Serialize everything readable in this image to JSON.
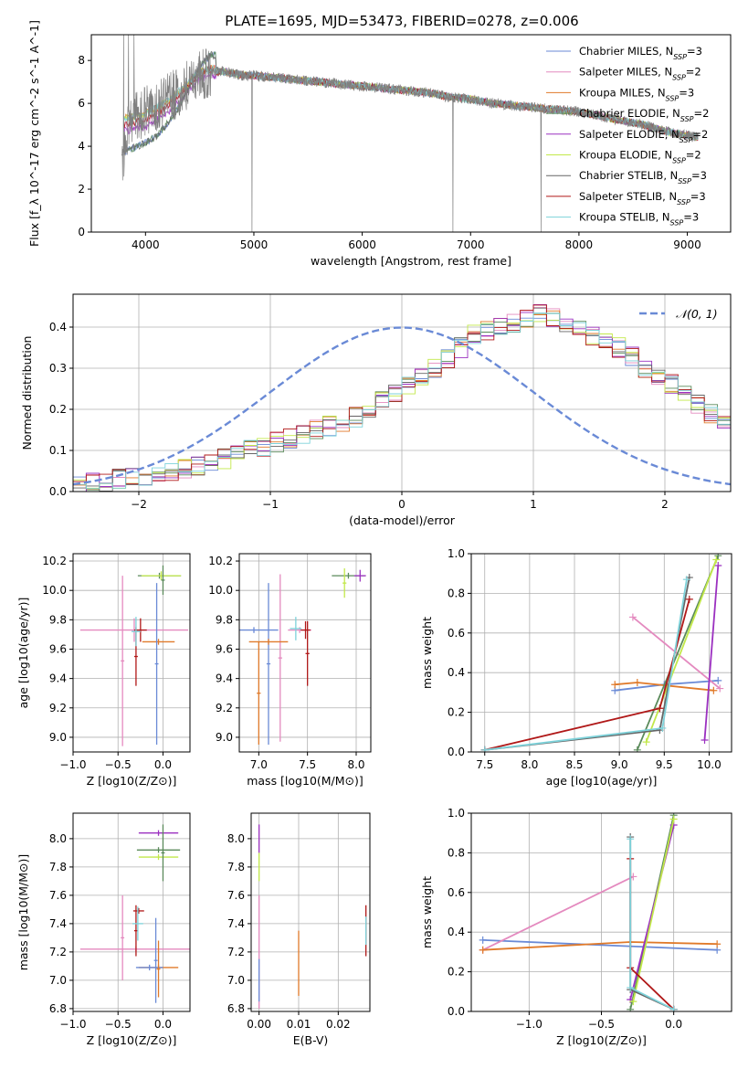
{
  "figure": {
    "title": "PLATE=1695, MJD=53473, FIBERID=0278, z=0.006"
  },
  "colors": [
    "#6a8ad6",
    "#e48abf",
    "#e07a2a",
    "#5a8a5a",
    "#9b30c0",
    "#c2e84a",
    "#666666",
    "#b01818",
    "#7dd2da"
  ],
  "chart_data": [
    {
      "type": "line",
      "name": "spectrum",
      "xlabel": "wavelength [Angstrom, rest frame]",
      "ylabel": "Flux [f_λ 10^-17 erg cm^-2 s^-1 A^-1]",
      "xlim": [
        3500,
        9400
      ],
      "ylim": [
        0,
        9.2
      ],
      "xticks": [
        4000,
        5000,
        6000,
        7000,
        8000,
        9000
      ],
      "yticks": [
        0,
        2,
        4,
        6,
        8
      ],
      "legend_position": "top-right",
      "legend": [
        {
          "label": "Chabrier MILES, N",
          "sub": "SSP",
          "suffix": "=3",
          "color": "#6a8ad6"
        },
        {
          "label": "Salpeter MILES, N",
          "sub": "SSP",
          "suffix": "=2",
          "color": "#e48abf"
        },
        {
          "label": "Kroupa MILES, N",
          "sub": "SSP",
          "suffix": "=3",
          "color": "#e07a2a"
        },
        {
          "label": "Chabrier ELODIE, N",
          "sub": "SSP",
          "suffix": "=2",
          "color": "#5a8a5a"
        },
        {
          "label": "Salpeter ELODIE, N",
          "sub": "SSP",
          "suffix": "=2",
          "color": "#9b30c0"
        },
        {
          "label": "Kroupa ELODIE, N",
          "sub": "SSP",
          "suffix": "=2",
          "color": "#c2e84a"
        },
        {
          "label": "Chabrier STELIB, N",
          "sub": "SSP",
          "suffix": "=3",
          "color": "#666666"
        },
        {
          "label": "Salpeter STELIB, N",
          "sub": "SSP",
          "suffix": "=3",
          "color": "#b01818"
        },
        {
          "label": "Kroupa STELIB, N",
          "sub": "SSP",
          "suffix": "=3",
          "color": "#7dd2da"
        }
      ],
      "data_envelope": {
        "x": [
          3800,
          3850,
          3900,
          3950,
          4000,
          4100,
          4200,
          4300,
          4400,
          4500,
          4600,
          4700,
          4800,
          4900,
          5000,
          5200,
          5400,
          5600,
          5800,
          6000,
          6200,
          6400,
          6600,
          6800,
          7000,
          7200,
          7400,
          7600,
          7800,
          8000,
          8200,
          8400,
          8600,
          8800,
          9000,
          9100
        ],
        "y": [
          3.6,
          5.2,
          5.3,
          5.5,
          5.6,
          5.9,
          6.2,
          6.5,
          7.0,
          7.3,
          7.4,
          7.5,
          7.4,
          7.3,
          7.3,
          7.2,
          7.1,
          7.0,
          6.9,
          6.8,
          6.7,
          6.6,
          6.5,
          6.3,
          6.2,
          6.0,
          5.9,
          5.8,
          5.7,
          5.6,
          5.4,
          5.2,
          5.0,
          4.7,
          4.5,
          4.4
        ]
      },
      "models_blue": {
        "x": [
          3800,
          3900,
          4000,
          4100,
          4200,
          4300,
          4400,
          4500,
          4600
        ],
        "series": [
          {
            "name": "Chabrier ELODIE",
            "values": [
              3.6,
              3.8,
              4.0,
              4.3,
              4.9,
              5.6,
              6.6,
              7.6,
              8.1
            ]
          },
          {
            "name": "Kroupa MILES",
            "values": [
              5.0,
              5.1,
              5.2,
              5.5,
              5.8,
              6.3,
              6.9,
              7.4,
              7.6
            ]
          },
          {
            "name": "Kroupa STELIB",
            "values": [
              5.3,
              5.4,
              5.5,
              5.8,
              6.1,
              6.5,
              7.0,
              7.5,
              7.6
            ]
          }
        ]
      }
    },
    {
      "type": "bar",
      "name": "residual-histogram",
      "xlabel": "(data-model)/error",
      "ylabel": "Normed distribution",
      "xlim": [
        -2.5,
        2.5
      ],
      "ylim": [
        0,
        0.48
      ],
      "xticks": [
        -2,
        -1,
        0,
        1,
        2
      ],
      "yticks": [
        0.0,
        0.1,
        0.2,
        0.3,
        0.4
      ],
      "bin_width": 0.1,
      "bin_start": -2.5,
      "histogram": [
        0.015,
        0.02,
        0.025,
        0.03,
        0.035,
        0.04,
        0.045,
        0.05,
        0.055,
        0.06,
        0.07,
        0.08,
        0.09,
        0.1,
        0.11,
        0.12,
        0.13,
        0.14,
        0.15,
        0.16,
        0.17,
        0.18,
        0.2,
        0.22,
        0.24,
        0.26,
        0.28,
        0.3,
        0.32,
        0.35,
        0.38,
        0.39,
        0.4,
        0.41,
        0.42,
        0.43,
        0.42,
        0.41,
        0.4,
        0.38,
        0.36,
        0.35,
        0.33,
        0.3,
        0.28,
        0.26,
        0.24,
        0.21,
        0.19,
        0.17
      ],
      "reference_curve": {
        "label": "𝒩(0, 1)",
        "mean": 0,
        "sigma": 1,
        "color": "#6a8ad6",
        "style": "dashed"
      },
      "legend_position": "top-right"
    },
    {
      "type": "scatter",
      "name": "age-vs-Z",
      "xlabel": "Z [log10(Z/Z⊙)]",
      "ylabel": "age [log10(age/yr)]",
      "xlim": [
        -1.0,
        0.3
      ],
      "ylim": [
        8.9,
        10.25
      ],
      "xticks": [
        -1.0,
        -0.5,
        0.0
      ],
      "yticks": [
        9.0,
        9.2,
        9.4,
        9.6,
        9.8,
        10.0,
        10.2
      ],
      "points": [
        {
          "x": -0.32,
          "y": 9.73,
          "xerr": 0.6,
          "yerr": 0.08,
          "color": "#e48abf"
        },
        {
          "x": -0.45,
          "y": 9.52,
          "xerr": 0.02,
          "yerr": 0.58,
          "color": "#e48abf"
        },
        {
          "x": -0.25,
          "y": 9.73,
          "xerr": 0.07,
          "yerr": 0.08,
          "color": "#b01818"
        },
        {
          "x": -0.3,
          "y": 9.55,
          "xerr": 0.02,
          "yerr": 0.2,
          "color": "#b01818"
        },
        {
          "x": -0.05,
          "y": 9.65,
          "xerr": 0.18,
          "yerr": 0.02,
          "color": "#e07a2a"
        },
        {
          "x": -0.07,
          "y": 9.5,
          "xerr": 0.02,
          "yerr": 0.55,
          "color": "#6a8ad6"
        },
        {
          "x": -0.3,
          "y": 9.72,
          "xerr": 0.05,
          "yerr": 0.1,
          "color": "#7dd2da"
        },
        {
          "x": -0.04,
          "y": 10.1,
          "xerr": 0.24,
          "yerr": 0.02,
          "color": "#5a8a5a"
        },
        {
          "x": -0.02,
          "y": 10.1,
          "xerr": 0.22,
          "yerr": 0.03,
          "color": "#c2e84a"
        },
        {
          "x": 0.0,
          "y": 10.07,
          "xerr": 0.02,
          "yerr": 0.1,
          "color": "#5a8a5a"
        }
      ]
    },
    {
      "type": "scatter",
      "name": "age-vs-mass",
      "xlabel": "mass [log10(M/M⊙)]",
      "ylabel": "",
      "xlim": [
        6.8,
        8.15
      ],
      "ylim": [
        8.9,
        10.25
      ],
      "xticks": [
        7.0,
        7.5,
        8.0
      ],
      "yticks": [
        9.0,
        9.2,
        9.4,
        9.6,
        9.8,
        10.0,
        10.2
      ],
      "points": [
        {
          "x": 7.22,
          "y": 9.54,
          "xerr": 0.02,
          "yerr": 0.57,
          "color": "#e48abf"
        },
        {
          "x": 7.1,
          "y": 9.5,
          "xerr": 0.02,
          "yerr": 0.55,
          "color": "#6a8ad6"
        },
        {
          "x": 6.95,
          "y": 9.73,
          "xerr": 0.25,
          "yerr": 0.02,
          "color": "#6a8ad6"
        },
        {
          "x": 7.1,
          "y": 9.65,
          "xerr": 0.2,
          "yerr": 0.02,
          "color": "#e07a2a"
        },
        {
          "x": 7.0,
          "y": 9.3,
          "xerr": 0.02,
          "yerr": 0.35,
          "color": "#e07a2a"
        },
        {
          "x": 7.42,
          "y": 9.73,
          "xerr": 0.12,
          "yerr": 0.02,
          "color": "#e48abf"
        },
        {
          "x": 7.48,
          "y": 9.73,
          "xerr": 0.05,
          "yerr": 0.06,
          "color": "#b01818"
        },
        {
          "x": 7.5,
          "y": 9.57,
          "xerr": 0.02,
          "yerr": 0.22,
          "color": "#b01818"
        },
        {
          "x": 7.38,
          "y": 9.74,
          "xerr": 0.06,
          "yerr": 0.08,
          "color": "#7dd2da"
        },
        {
          "x": 7.92,
          "y": 10.1,
          "xerr": 0.17,
          "yerr": 0.02,
          "color": "#5a8a5a"
        },
        {
          "x": 7.88,
          "y": 10.05,
          "xerr": 0.02,
          "yerr": 0.1,
          "color": "#c2e84a"
        },
        {
          "x": 8.04,
          "y": 10.1,
          "xerr": 0.06,
          "yerr": 0.04,
          "color": "#9b30c0"
        }
      ]
    },
    {
      "type": "line",
      "name": "mass-weight-vs-age",
      "xlabel": "age [log10(age/yr)]",
      "ylabel": "mass weight",
      "xlim": [
        7.35,
        10.25
      ],
      "ylim": [
        0,
        1
      ],
      "xticks": [
        7.5,
        8.0,
        8.5,
        9.0,
        9.5,
        10.0
      ],
      "yticks": [
        0.0,
        0.2,
        0.4,
        0.6,
        0.8,
        1.0
      ],
      "series": [
        {
          "name": "Chabrier MILES",
          "color": "#6a8ad6",
          "x": [
            8.95,
            9.5,
            10.1
          ],
          "y": [
            0.31,
            0.34,
            0.36
          ]
        },
        {
          "name": "Salpeter MILES",
          "color": "#e48abf",
          "x": [
            9.15,
            10.12
          ],
          "y": [
            0.68,
            0.32
          ]
        },
        {
          "name": "Kroupa MILES",
          "color": "#e07a2a",
          "x": [
            8.95,
            9.2,
            10.05
          ],
          "y": [
            0.34,
            0.35,
            0.31
          ]
        },
        {
          "name": "Chabrier ELODIE",
          "color": "#5a8a5a",
          "x": [
            9.2,
            10.1
          ],
          "y": [
            0.01,
            0.99
          ]
        },
        {
          "name": "Salpeter ELODIE",
          "color": "#9b30c0",
          "x": [
            9.95,
            10.1
          ],
          "y": [
            0.06,
            0.94
          ]
        },
        {
          "name": "Kroupa ELODIE",
          "color": "#c2e84a",
          "x": [
            9.3,
            10.08
          ],
          "y": [
            0.05,
            0.97
          ]
        },
        {
          "name": "Chabrier STELIB",
          "color": "#666666",
          "x": [
            7.5,
            9.45,
            9.78
          ],
          "y": [
            0.01,
            0.11,
            0.88
          ]
        },
        {
          "name": "Salpeter STELIB",
          "color": "#b01818",
          "x": [
            7.5,
            9.45,
            9.78
          ],
          "y": [
            0.01,
            0.22,
            0.77
          ]
        },
        {
          "name": "Kroupa STELIB",
          "color": "#7dd2da",
          "x": [
            7.5,
            9.48,
            9.75
          ],
          "y": [
            0.01,
            0.12,
            0.87
          ]
        }
      ]
    },
    {
      "type": "scatter",
      "name": "mass-vs-Z",
      "xlabel": "Z [log10(Z/Z⊙)]",
      "ylabel": "mass [log10(M/M⊙)]",
      "xlim": [
        -1.0,
        0.3
      ],
      "ylim": [
        6.78,
        8.18
      ],
      "xticks": [
        -1.0,
        -0.5,
        0.0
      ],
      "yticks": [
        6.8,
        7.0,
        7.2,
        7.4,
        7.6,
        7.8,
        8.0
      ],
      "points": [
        {
          "x": -0.3,
          "y": 7.22,
          "xerr": 0.62,
          "yerr": 0.02,
          "color": "#e48abf"
        },
        {
          "x": -0.45,
          "y": 7.3,
          "xerr": 0.02,
          "yerr": 0.3,
          "color": "#e48abf"
        },
        {
          "x": -0.27,
          "y": 7.49,
          "xerr": 0.06,
          "yerr": 0.02,
          "color": "#b01818"
        },
        {
          "x": -0.3,
          "y": 7.35,
          "xerr": 0.02,
          "yerr": 0.18,
          "color": "#b01818"
        },
        {
          "x": -0.28,
          "y": 7.4,
          "xerr": 0.06,
          "yerr": 0.12,
          "color": "#7dd2da"
        },
        {
          "x": -0.05,
          "y": 7.09,
          "xerr": 0.22,
          "yerr": 0.02,
          "color": "#e07a2a"
        },
        {
          "x": -0.15,
          "y": 7.09,
          "xerr": 0.15,
          "yerr": 0.02,
          "color": "#6a8ad6"
        },
        {
          "x": -0.08,
          "y": 7.14,
          "xerr": 0.02,
          "yerr": 0.3,
          "color": "#6a8ad6"
        },
        {
          "x": -0.05,
          "y": 7.08,
          "xerr": 0.02,
          "yerr": 0.2,
          "color": "#e07a2a"
        },
        {
          "x": -0.05,
          "y": 8.04,
          "xerr": 0.22,
          "yerr": 0.02,
          "color": "#9b30c0"
        },
        {
          "x": -0.05,
          "y": 7.92,
          "xerr": 0.24,
          "yerr": 0.02,
          "color": "#5a8a5a"
        },
        {
          "x": -0.05,
          "y": 7.87,
          "xerr": 0.22,
          "yerr": 0.02,
          "color": "#c2e84a"
        },
        {
          "x": 0.0,
          "y": 7.9,
          "xerr": 0.02,
          "yerr": 0.2,
          "color": "#5a8a5a"
        }
      ]
    },
    {
      "type": "scatter",
      "name": "mass-vs-EBV",
      "xlabel": "E(B-V)",
      "ylabel": "",
      "xlim": [
        -0.002,
        0.028
      ],
      "ylim": [
        6.78,
        8.18
      ],
      "xticks": [
        0.0,
        0.01,
        0.02
      ],
      "yticks": [
        6.8,
        7.0,
        7.2,
        7.4,
        7.6,
        7.8,
        8.0
      ],
      "points": [
        {
          "x": 0.0,
          "y": 7.2,
          "xerr": 0.0,
          "yerr": 0.4,
          "color": "#e48abf"
        },
        {
          "x": 0.0,
          "y": 7.0,
          "xerr": 0.0,
          "yerr": 0.15,
          "color": "#6a8ad6"
        },
        {
          "x": 0.0,
          "y": 8.0,
          "xerr": 0.0,
          "yerr": 0.1,
          "color": "#9b30c0"
        },
        {
          "x": 0.0,
          "y": 7.8,
          "xerr": 0.0,
          "yerr": 0.1,
          "color": "#c2e84a"
        },
        {
          "x": 0.01,
          "y": 7.12,
          "xerr": 0.0,
          "yerr": 0.23,
          "color": "#e07a2a"
        },
        {
          "x": 0.027,
          "y": 7.35,
          "xerr": 0.0,
          "yerr": 0.18,
          "color": "#b01818"
        },
        {
          "x": 0.027,
          "y": 7.35,
          "xerr": 0.0,
          "yerr": 0.1,
          "color": "#7dd2da"
        }
      ]
    },
    {
      "type": "line",
      "name": "mass-weight-vs-Z",
      "xlabel": "Z [log10(Z/Z⊙)]",
      "ylabel": "mass weight",
      "xlim": [
        -1.4,
        0.4
      ],
      "ylim": [
        0,
        1
      ],
      "xticks": [
        -1.0,
        -0.5,
        0.0
      ],
      "yticks": [
        0.0,
        0.2,
        0.4,
        0.6,
        0.8,
        1.0
      ],
      "series": [
        {
          "name": "Chabrier MILES",
          "color": "#6a8ad6",
          "x": [
            -1.32,
            0.3
          ],
          "y": [
            0.36,
            0.31
          ]
        },
        {
          "name": "Salpeter MILES",
          "color": "#e48abf",
          "x": [
            -1.32,
            -0.28
          ],
          "y": [
            0.31,
            0.68
          ]
        },
        {
          "name": "Kroupa MILES",
          "color": "#e07a2a",
          "x": [
            -1.32,
            -0.3,
            0.3
          ],
          "y": [
            0.31,
            0.35,
            0.34
          ]
        },
        {
          "name": "Chabrier ELODIE",
          "color": "#5a8a5a",
          "x": [
            -0.3,
            0.0
          ],
          "y": [
            0.01,
            0.99
          ]
        },
        {
          "name": "Salpeter ELODIE",
          "color": "#9b30c0",
          "x": [
            -0.3,
            0.0
          ],
          "y": [
            0.06,
            0.94
          ]
        },
        {
          "name": "Kroupa ELODIE",
          "color": "#c2e84a",
          "x": [
            -0.28,
            0.0
          ],
          "y": [
            0.05,
            0.97
          ]
        },
        {
          "name": "Chabrier STELIB",
          "color": "#666666",
          "x": [
            -0.3,
            -0.3,
            0.0
          ],
          "y": [
            0.88,
            0.11,
            0.01
          ]
        },
        {
          "name": "Salpeter STELIB",
          "color": "#b01818",
          "x": [
            -0.3,
            -0.3,
            0.0
          ],
          "y": [
            0.77,
            0.22,
            0.01
          ]
        },
        {
          "name": "Kroupa STELIB",
          "color": "#7dd2da",
          "x": [
            -0.3,
            -0.3,
            0.0
          ],
          "y": [
            0.87,
            0.12,
            0.01
          ]
        }
      ]
    }
  ]
}
